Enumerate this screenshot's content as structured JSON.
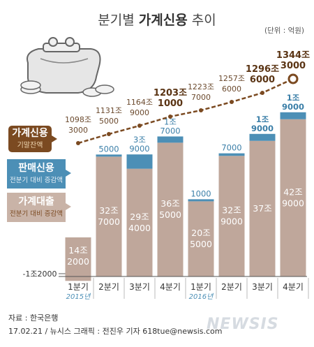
{
  "title": {
    "prefix": "분기별 ",
    "bold": "가계신용",
    "suffix": " 추이"
  },
  "unit": "(단위 : 억원)",
  "legend": [
    {
      "name": "가계신용",
      "sub": "기말잔액",
      "color": "#7b4a21"
    },
    {
      "name": "판매신용",
      "sub": "전분기 대비 증감액",
      "color": "#4c8fb6"
    },
    {
      "name": "가계대출",
      "sub": "전분기 대비 증감액",
      "color": "#bfa79b"
    }
  ],
  "source": "자료 : 한국은행",
  "credit": "17.02.21 / 뉴시스 그래픽 : 전진우 기자 618tue@newsis.com",
  "watermark": "NEWSIS",
  "chart_data": {
    "type": "bar+line",
    "categories": [
      "1분기",
      "2분기",
      "3분기",
      "4분기",
      "1분기",
      "2분기",
      "3분기",
      "4분기"
    ],
    "year_labels": [
      "2015년",
      "",
      "",
      "",
      "2016년",
      "",
      "",
      ""
    ],
    "series": [
      {
        "name": "가계대출",
        "values": [
          -12000,
          327000,
          294000,
          365000,
          205000,
          329000,
          370000,
          429000
        ],
        "labels": [
          [
            "-1조2000"
          ],
          [
            "32조",
            "7000"
          ],
          [
            "29조",
            "4000"
          ],
          [
            "36조",
            "5000"
          ],
          [
            "20조",
            "5000"
          ],
          [
            "32조",
            "9000"
          ],
          [
            "37조"
          ],
          [
            "42조",
            "9000"
          ]
        ]
      },
      {
        "name": "판매신용",
        "values": [
          0,
          5000,
          39000,
          17000,
          1000,
          7000,
          19000,
          19000
        ],
        "labels": [
          [],
          [
            "5000"
          ],
          [
            "3조",
            "9000"
          ],
          [
            "1조",
            "7000"
          ],
          [
            "1000"
          ],
          [
            "7000"
          ],
          [
            "1조",
            "9000"
          ],
          [
            "1조",
            "9000"
          ]
        ]
      },
      {
        "name": "가계신용",
        "values": [
          10983000,
          11315000,
          11649000,
          12031000,
          12237000,
          12576000,
          12966000,
          13443000
        ],
        "labels": [
          [
            "1098조",
            "3000"
          ],
          [
            "1131조",
            "5000"
          ],
          [
            "1164조",
            "9000"
          ],
          [
            "1203조",
            "1000"
          ],
          [
            "1223조",
            "7000"
          ],
          [
            "1257조",
            "6000"
          ],
          [
            "1296조",
            "6000"
          ],
          [
            "1344조",
            "3000"
          ]
        ]
      }
    ],
    "bar_extra_labels": [
      [
        "14조",
        "2000"
      ],
      [],
      [],
      [],
      [],
      [],
      [],
      []
    ]
  }
}
